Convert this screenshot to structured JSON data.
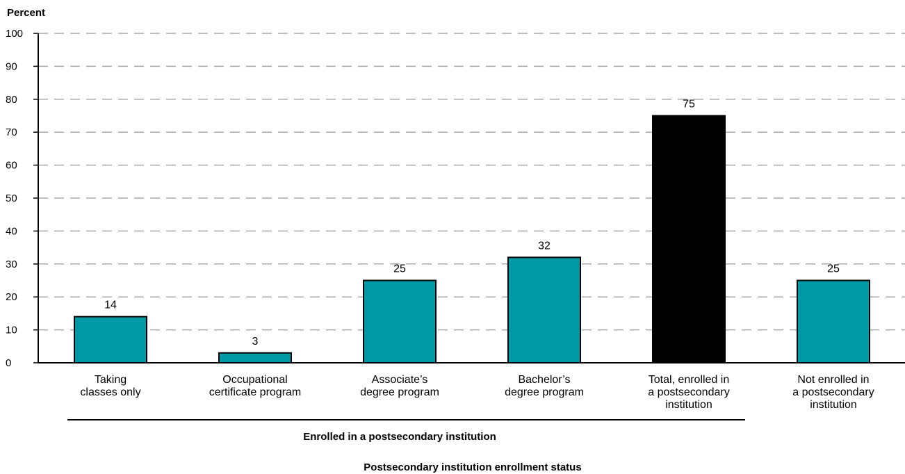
{
  "chart_data": {
    "type": "bar",
    "ylabel": "Percent",
    "xlabel": "Postsecondary institution enrollment status",
    "group_label": "Enrolled in a postsecondary institution",
    "ylim": [
      0,
      100
    ],
    "yticks": [
      0,
      10,
      20,
      30,
      40,
      50,
      60,
      70,
      80,
      90,
      100
    ],
    "grid": "horizontal dashed",
    "categories": [
      [
        "Taking",
        "classes only"
      ],
      [
        "Occupational",
        "certificate program"
      ],
      [
        "Associate’s",
        "degree program"
      ],
      [
        "Bachelor’s",
        "degree program"
      ],
      [
        "Total, enrolled in",
        "a postsecondary",
        "institution"
      ],
      [
        "Not enrolled in",
        "a postsecondary",
        "institution"
      ]
    ],
    "values": [
      14,
      3,
      25,
      32,
      75,
      25
    ],
    "value_labels": [
      "14",
      "3",
      "25",
      "32",
      "75",
      "25"
    ],
    "bar_colors": [
      "#009aa6",
      "#009aa6",
      "#009aa6",
      "#009aa6",
      "#000000",
      "#009aa6"
    ]
  }
}
